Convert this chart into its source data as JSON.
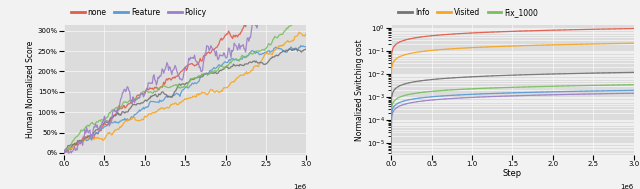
{
  "legend_left": [
    {
      "label": "none",
      "color": "#e05c4b"
    },
    {
      "label": "Feature",
      "color": "#5b9bd5"
    },
    {
      "label": "Policy",
      "color": "#9b7fc7"
    }
  ],
  "legend_right": [
    {
      "label": "Info",
      "color": "#737373"
    },
    {
      "label": "Visited",
      "color": "#f5a623"
    },
    {
      "label": "Fix_1000",
      "color": "#7abf5e"
    }
  ],
  "colors": {
    "none": "#e05c4b",
    "Feature": "#5b9bd5",
    "Policy": "#9b7fc7",
    "Info": "#737373",
    "Visited": "#f5a623",
    "Fix_1000": "#7abf5e"
  },
  "left": {
    "ylabel": "Human Normalized Score",
    "xlim": [
      0,
      3000000
    ],
    "ylim": [
      -0.005,
      0.315
    ],
    "yticks": [
      0.0,
      0.05,
      0.1,
      0.15,
      0.2,
      0.25,
      0.3
    ],
    "yticklabels": [
      "0%",
      "50%",
      "100%",
      "150%",
      "200%",
      "250%",
      "300%"
    ],
    "bg_color": "#dcdcdc"
  },
  "right": {
    "ylabel": "Normalized Switching cost",
    "xlabel": "Step",
    "xlim": [
      0,
      3000000
    ],
    "bg_color": "#dcdcdc",
    "curve_params": [
      {
        "label": "none",
        "scale": 0.95,
        "shape": 0.4
      },
      {
        "label": "Visited",
        "scale": 0.22,
        "shape": 0.4
      },
      {
        "label": "Info",
        "scale": 0.012,
        "shape": 0.4
      },
      {
        "label": "Policy",
        "scale": 0.0015,
        "shape": 0.38
      },
      {
        "label": "Fix_1000",
        "scale": 0.0035,
        "shape": 0.37
      },
      {
        "label": "Feature",
        "scale": 0.002,
        "shape": 0.36
      }
    ]
  },
  "fig_bg": "#f2f2f2"
}
